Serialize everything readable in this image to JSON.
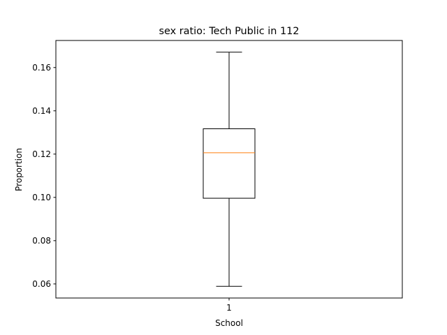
{
  "chart_data": {
    "type": "box",
    "title": "sex ratio: Tech Public in 112",
    "xlabel": "School",
    "ylabel": "Proportion",
    "categories": [
      "1"
    ],
    "ylim": [
      0.0535,
      0.1725
    ],
    "yticks": [
      0.06,
      0.08,
      0.1,
      0.12,
      0.14,
      0.16
    ],
    "ytick_labels": [
      "0.06",
      "0.08",
      "0.10",
      "0.12",
      "0.14",
      "0.16"
    ],
    "boxes": [
      {
        "category": "1",
        "whisker_low": 0.0589,
        "q1": 0.0996,
        "median": 0.1206,
        "q3": 0.1317,
        "whisker_high": 0.1671
      }
    ],
    "grid": false,
    "colors": {
      "box": "#000000",
      "median": "#ff7f0e",
      "whisker": "#000000"
    }
  }
}
